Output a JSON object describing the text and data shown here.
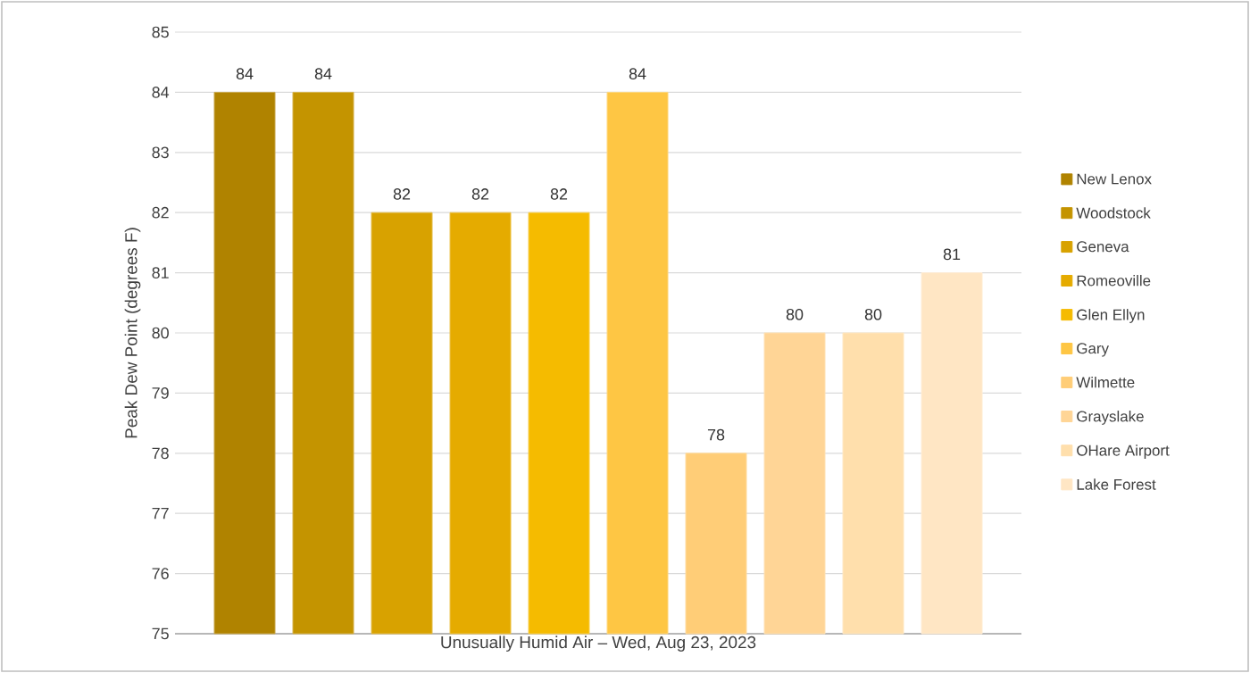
{
  "chart_data": {
    "type": "bar",
    "xlabel": "Unusually Humid Air – Wed, Aug 23, 2023",
    "ylabel": "Peak Dew Point (degrees F)",
    "categories": [
      null
    ],
    "series": [
      {
        "name": "New Lenox",
        "color": "#b08300",
        "values": [
          84
        ]
      },
      {
        "name": "Woodstock",
        "color": "#c49400",
        "values": [
          84
        ]
      },
      {
        "name": "Geneva",
        "color": "#d8a200",
        "values": [
          82
        ]
      },
      {
        "name": "Romeoville",
        "color": "#e5ab00",
        "values": [
          82
        ]
      },
      {
        "name": "Glen Ellyn",
        "color": "#f5bb00",
        "values": [
          82
        ]
      },
      {
        "name": "Gary",
        "color": "#fec644",
        "values": [
          84
        ]
      },
      {
        "name": "Wilmette",
        "color": "#ffcd77",
        "values": [
          78
        ]
      },
      {
        "name": "Grayslake",
        "color": "#ffd596",
        "values": [
          80
        ]
      },
      {
        "name": "OHare Airport",
        "color": "#ffdfac",
        "values": [
          80
        ]
      },
      {
        "name": "Lake Forest",
        "color": "#ffe6c4",
        "values": [
          81
        ]
      }
    ],
    "ylim": [
      75,
      85
    ],
    "yticks": [
      75,
      76,
      77,
      78,
      79,
      80,
      81,
      82,
      83,
      84,
      85
    ],
    "grid": "y",
    "legend": "right",
    "data_labels": true
  }
}
